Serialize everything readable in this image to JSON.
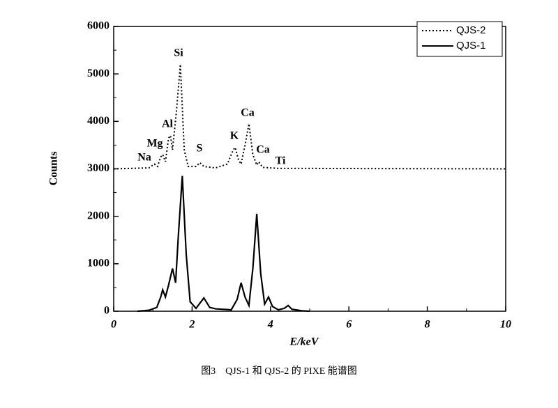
{
  "chart_data": {
    "type": "line",
    "x_label": "E/keV",
    "y_label": "Counts",
    "caption": "图3　QJS-1 和 QJS-2 的 PIXE 能谱图",
    "xlim": [
      0,
      10
    ],
    "xticks": [
      0,
      2,
      4,
      6,
      8,
      10
    ],
    "ylim": [
      0,
      6000
    ],
    "yticks": [
      0,
      1000,
      2000,
      3000,
      4000,
      5000,
      6000
    ],
    "legend": "upper right",
    "annotations": [
      "Na",
      "Mg",
      "Al",
      "Si",
      "S",
      "K",
      "Ca",
      "Ca",
      "Ti"
    ],
    "series": [
      {
        "name": "QJS-2",
        "color": "#000000",
        "style": "dotted",
        "x": [
          0,
          0.9,
          1.04,
          1.12,
          1.2,
          1.25,
          1.32,
          1.4,
          1.45,
          1.5,
          1.6,
          1.7,
          1.8,
          1.9,
          2.1,
          2.2,
          2.3,
          2.6,
          2.9,
          3.05,
          3.1,
          3.18,
          3.25,
          3.35,
          3.45,
          3.55,
          3.65,
          3.7,
          3.8,
          4.0,
          4.2,
          10
        ],
        "values": [
          3000,
          3020,
          3100,
          3050,
          3250,
          3300,
          3150,
          3650,
          3700,
          3400,
          4200,
          5200,
          3400,
          3050,
          3050,
          3130,
          3050,
          3020,
          3100,
          3400,
          3450,
          3200,
          3100,
          3500,
          3950,
          3300,
          3080,
          3150,
          3030,
          3020,
          3010,
          3000
        ]
      },
      {
        "name": "QJS-1",
        "color": "#000000",
        "style": "solid",
        "x": [
          0.6,
          0.9,
          1.1,
          1.2,
          1.25,
          1.32,
          1.4,
          1.5,
          1.58,
          1.65,
          1.75,
          1.85,
          1.95,
          2.1,
          2.3,
          2.45,
          2.6,
          3.0,
          3.15,
          3.25,
          3.35,
          3.45,
          3.55,
          3.65,
          3.75,
          3.85,
          3.95,
          4.05,
          4.2,
          4.35,
          4.45,
          4.55,
          4.8,
          5.0
        ],
        "values": [
          0,
          20,
          80,
          300,
          450,
          300,
          550,
          900,
          600,
          1600,
          2850,
          1200,
          200,
          60,
          280,
          80,
          50,
          30,
          250,
          600,
          300,
          120,
          900,
          2050,
          800,
          150,
          300,
          100,
          30,
          60,
          120,
          40,
          10,
          0
        ]
      }
    ]
  }
}
